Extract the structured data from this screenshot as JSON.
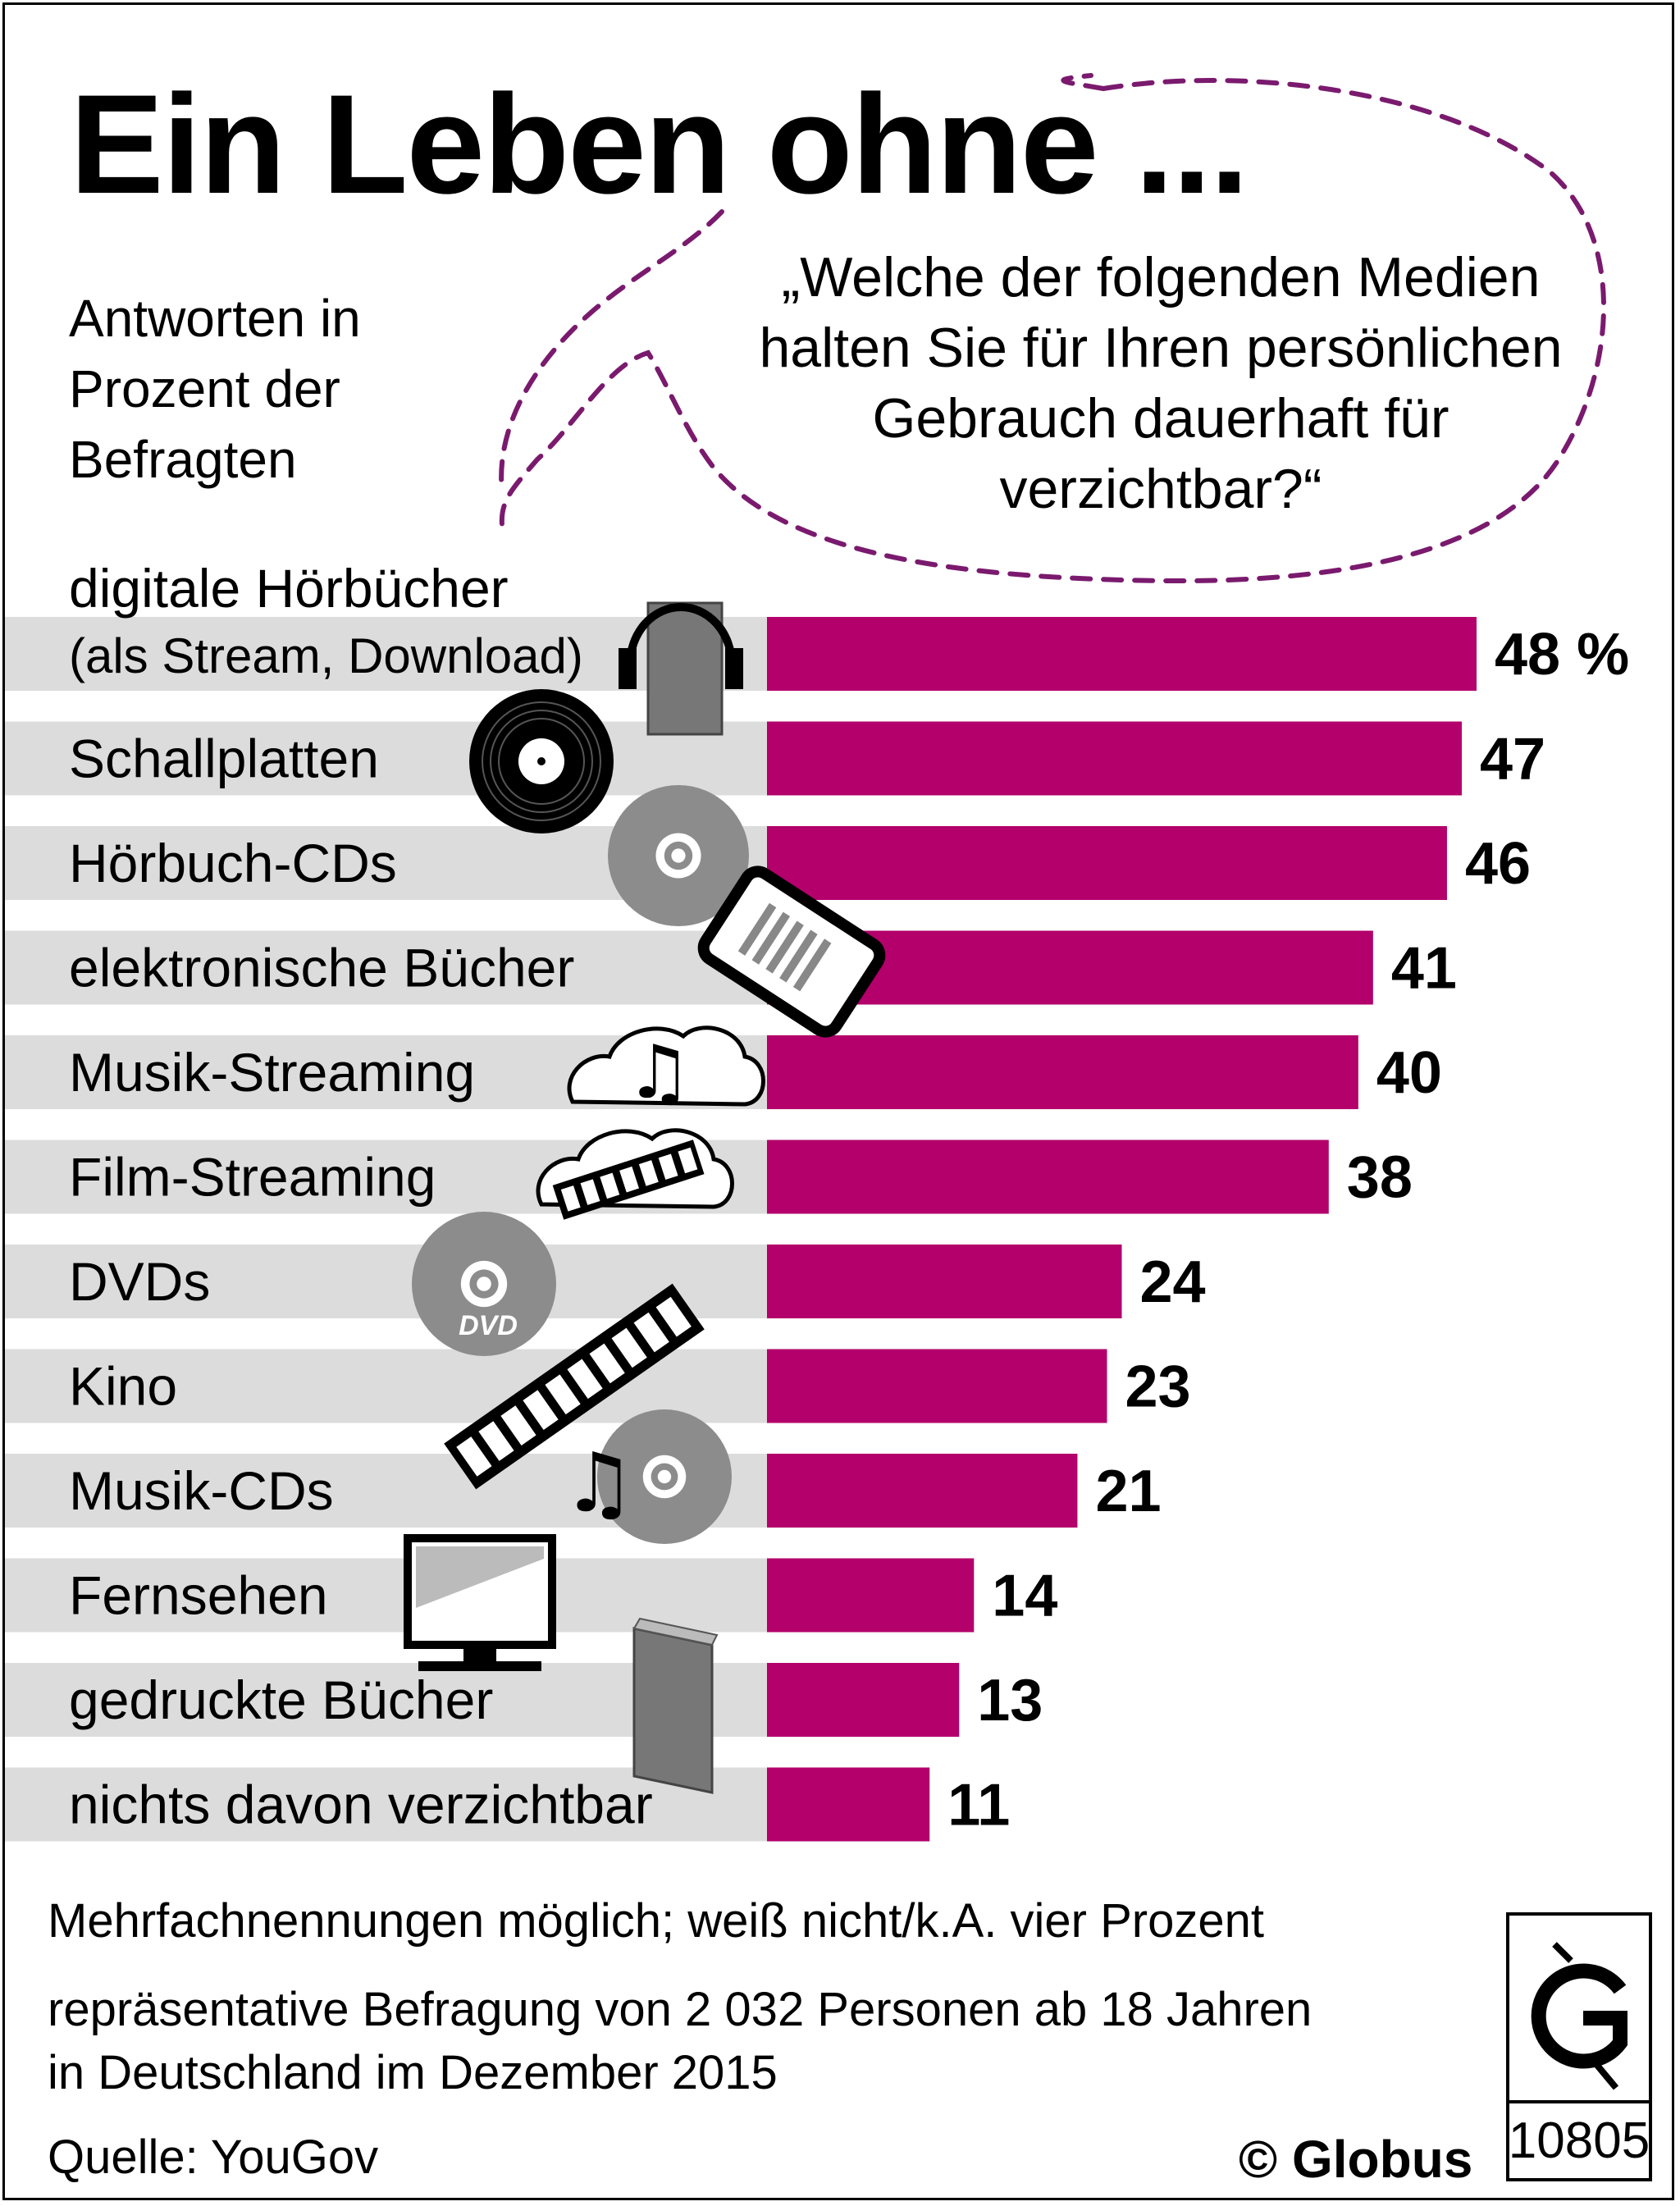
{
  "title": "Ein Leben ohne ...",
  "subtitle_lines": [
    "Antworten in",
    "Prozent der",
    "Befragten"
  ],
  "question_lines": [
    "„Welche der folgenden Medien",
    "halten Sie für Ihren persönlichen",
    "Gebrauch dauerhaft für",
    "verzichtbar?“"
  ],
  "chart_data": {
    "type": "bar",
    "orientation": "horizontal",
    "unit_suffix_first": " %",
    "categories": [
      [
        "digitale Hörbücher",
        "(als Stream, Download)"
      ],
      [
        "Schallplatten"
      ],
      [
        "Hörbuch-CDs"
      ],
      [
        "elektronische Bücher"
      ],
      [
        "Musik-Streaming"
      ],
      [
        "Film-Streaming"
      ],
      [
        "DVDs"
      ],
      [
        "Kino"
      ],
      [
        "Musik-CDs"
      ],
      [
        "Fernsehen"
      ],
      [
        "gedruckte Bücher"
      ],
      [
        "nichts davon verzichtbar"
      ]
    ],
    "values": [
      48,
      47,
      46,
      41,
      40,
      38,
      24,
      23,
      21,
      14,
      13,
      11
    ],
    "xlim": [
      0,
      48
    ],
    "bar_color": "#b3006b",
    "row_bg_color": "#dcdcdc",
    "icons": [
      "headphones-book-icon",
      "vinyl-record-icon",
      "cd-icon",
      "ebook-reader-icon",
      "music-cloud-icon",
      "film-cloud-icon",
      "dvd-icon",
      "film-strip-icon",
      "music-cd-icon",
      "television-icon",
      "printed-book-icon",
      ""
    ]
  },
  "footnotes": {
    "line1": "Mehrfachnennungen möglich; weiß nicht/k.A. vier Prozent",
    "line2": "repräsentative Befragung von 2 032 Personen ab 18 Jahren",
    "line3": "in Deutschland im Dezember 2015",
    "source": "Quelle: YouGov"
  },
  "copyright": "© Globus",
  "logo_number": "10805",
  "accent_color": "#7a1a6e"
}
